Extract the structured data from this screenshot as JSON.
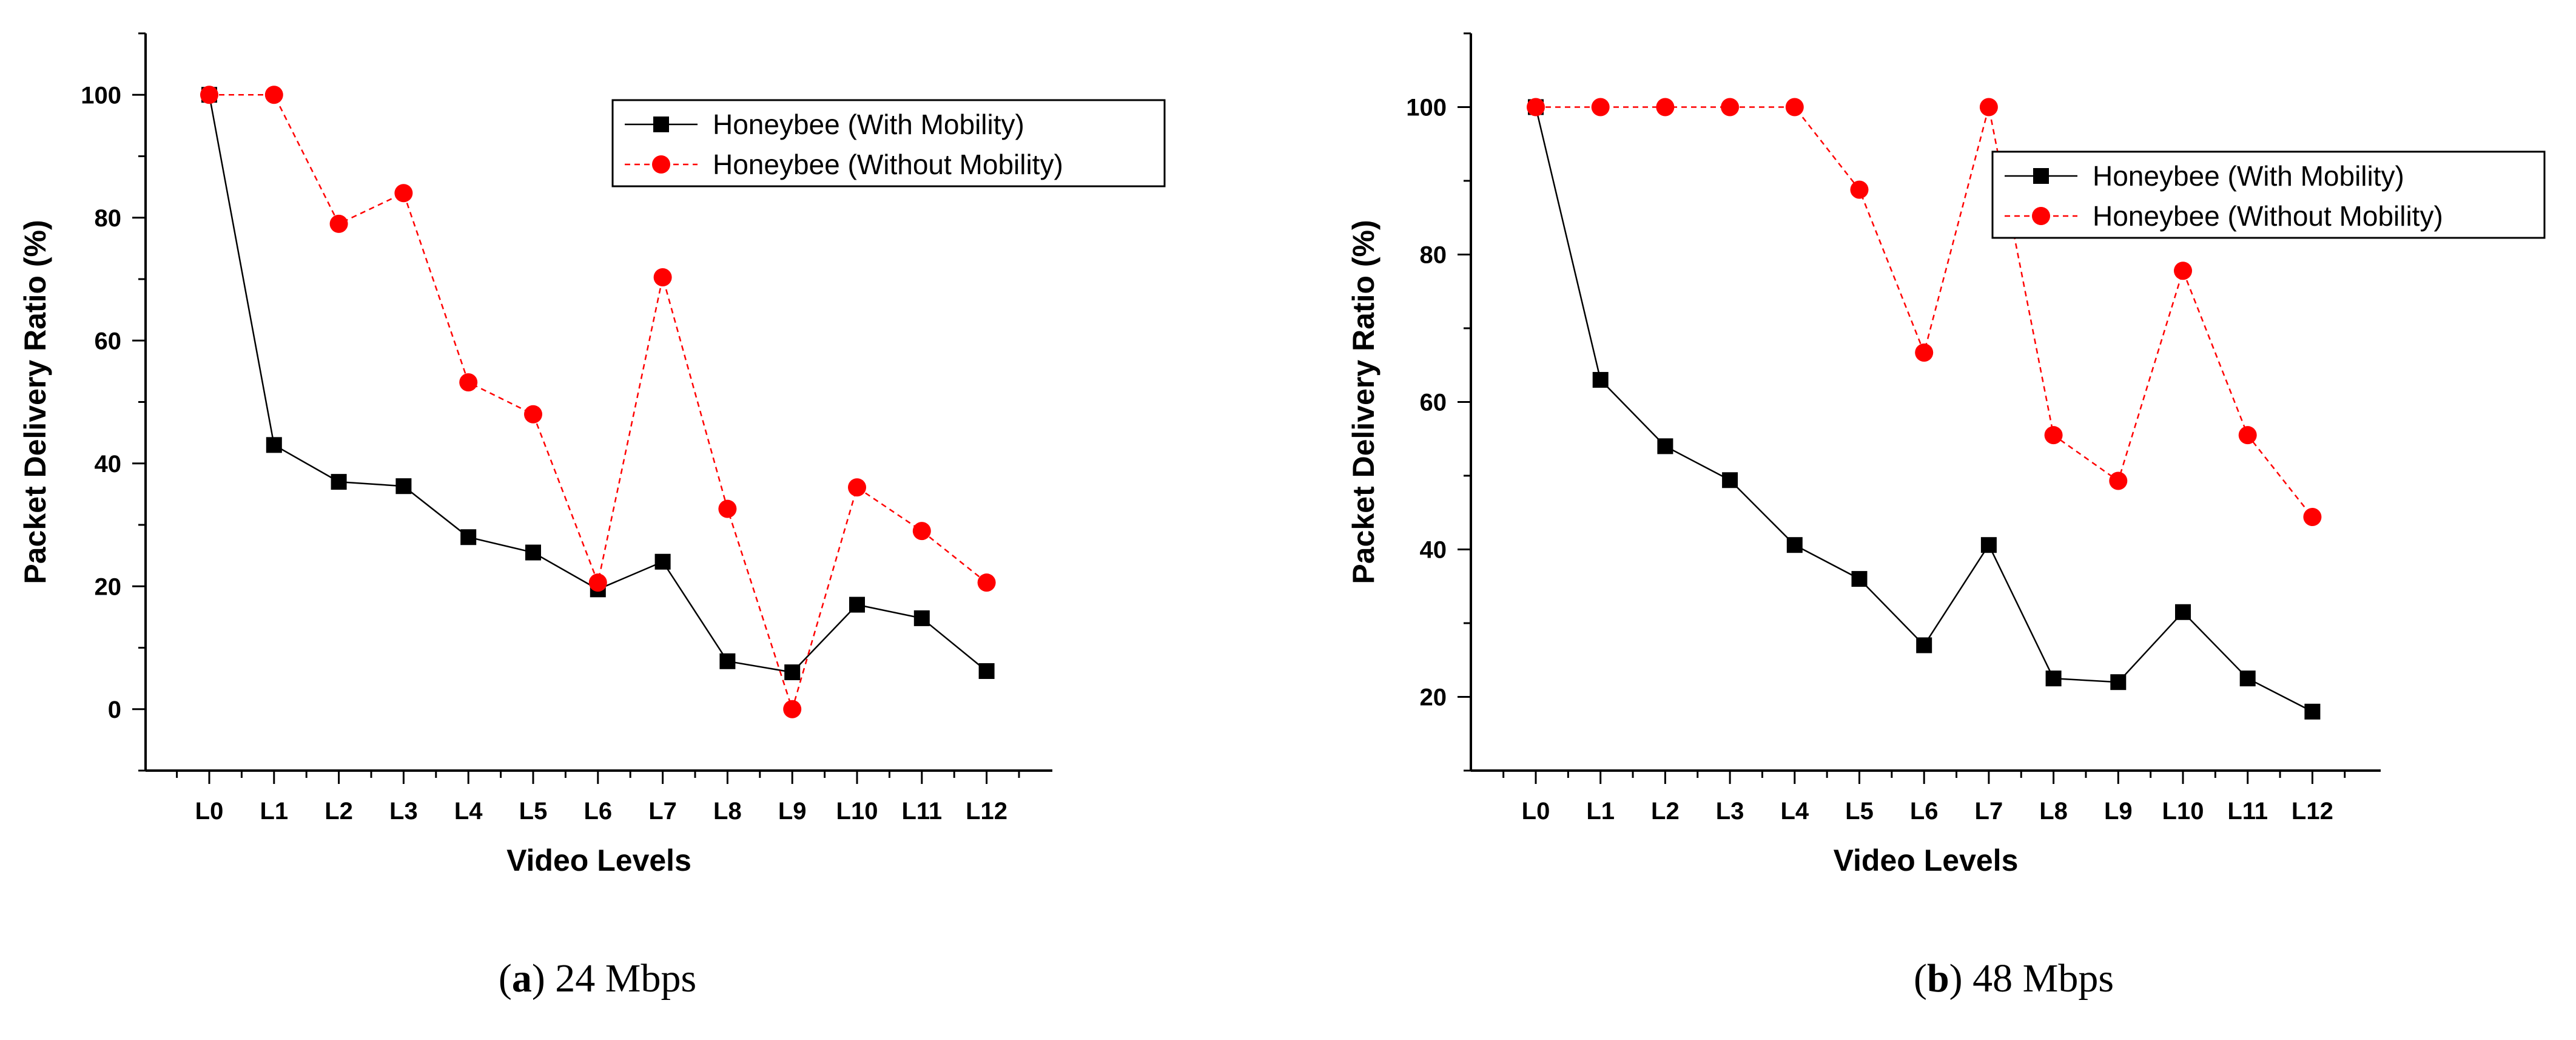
{
  "colors": {
    "series1": "#000000",
    "series2": "#ff0000"
  },
  "chart_data": [
    {
      "type": "line",
      "panel_label": "a",
      "caption_text": "24 Mbps",
      "categories": [
        "L0",
        "L1",
        "L2",
        "L3",
        "L4",
        "L5",
        "L6",
        "L7",
        "L8",
        "L9",
        "L10",
        "L11",
        "L12"
      ],
      "xlabel": "Video Levels",
      "ylabel": "Packet Delivery Ratio (%)",
      "ylim": [
        -10,
        110
      ],
      "yticks": [
        0,
        20,
        40,
        60,
        80,
        100
      ],
      "series": [
        {
          "name": "Honeybee (With Mobility)",
          "marker": "square",
          "line": "solid",
          "values": [
            100,
            43,
            37,
            36.3,
            28,
            25.5,
            19.5,
            24,
            7.8,
            6,
            17,
            14.8,
            6.2
          ]
        },
        {
          "name": "Honeybee (Without Mobility)",
          "marker": "circle",
          "line": "dashed",
          "values": [
            100,
            100,
            79,
            84,
            53.2,
            48,
            20.6,
            70.3,
            32.6,
            0,
            36.1,
            29,
            20.6
          ]
        }
      ],
      "legend": "top-right"
    },
    {
      "type": "line",
      "panel_label": "b",
      "caption_text": "48 Mbps",
      "categories": [
        "L0",
        "L1",
        "L2",
        "L3",
        "L4",
        "L5",
        "L6",
        "L7",
        "L8",
        "L9",
        "L10",
        "L11",
        "L12"
      ],
      "xlabel": "Video Levels",
      "ylabel": "Packet Delivery Ratio (%)",
      "ylim": [
        10,
        110
      ],
      "yticks": [
        20,
        40,
        60,
        80,
        100
      ],
      "series": [
        {
          "name": "Honeybee (With Mobility)",
          "marker": "square",
          "line": "solid",
          "values": [
            100,
            63,
            54,
            49.4,
            40.6,
            36,
            27,
            40.6,
            22.5,
            22,
            31.5,
            22.5,
            18
          ]
        },
        {
          "name": "Honeybee (Without Mobility)",
          "marker": "circle",
          "line": "dashed",
          "values": [
            100,
            100,
            100,
            100,
            100,
            88.8,
            66.7,
            100,
            55.5,
            49.3,
            77.8,
            55.5,
            44.4
          ]
        }
      ],
      "legend": "top-right"
    }
  ]
}
